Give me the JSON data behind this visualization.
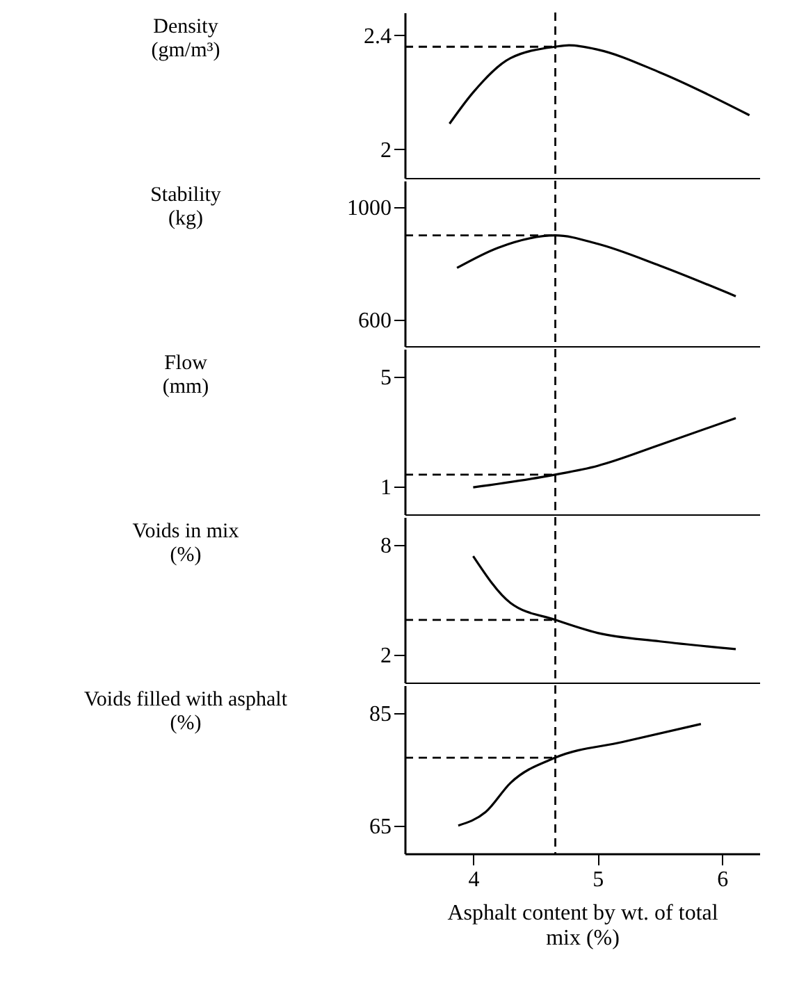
{
  "chart_data": [
    {
      "type": "line",
      "ylabel": "Density\n(gm/m³)",
      "x": [
        3.81,
        4.0,
        4.3,
        4.66,
        4.77,
        5.0,
        5.5,
        6.22
      ],
      "series": [
        {
          "color": "#000000",
          "values": [
            2.09,
            2.2,
            2.32,
            2.36,
            2.365,
            2.35,
            2.27,
            2.12
          ]
        }
      ],
      "xlim": [
        3.45,
        6.3
      ],
      "ylim": [
        1.9,
        2.48
      ],
      "yticks": [
        2,
        2.4
      ],
      "tick_labels": "y",
      "grid": false,
      "marker": "none",
      "line_style": "solid",
      "ref_lines": [
        {
          "axis": "x",
          "value": 4.66,
          "line_style": "dashed"
        },
        {
          "axis": "y",
          "value": 2.36,
          "line_style": "dashed"
        }
      ]
    },
    {
      "type": "line",
      "ylabel": "Stability\n(kg)",
      "x": [
        3.87,
        4.2,
        4.66,
        5.0,
        5.5,
        6.11
      ],
      "series": [
        {
          "color": "#000000",
          "values": [
            784,
            856,
            900,
            870,
            792,
            683
          ]
        }
      ],
      "xlim": [
        3.45,
        6.3
      ],
      "ylim": [
        505,
        1095
      ],
      "yticks": [
        600,
        1000
      ],
      "tick_labels": "y",
      "grid": false,
      "marker": "none",
      "line_style": "solid",
      "ref_lines": [
        {
          "axis": "x",
          "value": 4.66,
          "line_style": "dashed"
        },
        {
          "axis": "y",
          "value": 900,
          "line_style": "dashed"
        }
      ]
    },
    {
      "type": "line",
      "ylabel": "Flow\n(mm)",
      "x": [
        4.0,
        4.66,
        5.0,
        5.5,
        6.11
      ],
      "series": [
        {
          "color": "#000000",
          "values": [
            0.98,
            1.44,
            1.76,
            2.52,
            3.49
          ]
        }
      ],
      "xlim": [
        3.45,
        6.3
      ],
      "ylim": [
        0,
        6
      ],
      "yticks": [
        1,
        5
      ],
      "tick_labels": "y",
      "grid": false,
      "marker": "none",
      "line_style": "solid",
      "ref_lines": [
        {
          "axis": "x",
          "value": 4.66,
          "line_style": "dashed"
        },
        {
          "axis": "y",
          "value": 1.44,
          "line_style": "dashed"
        }
      ]
    },
    {
      "type": "line",
      "ylabel": "Voids in mix\n(%)",
      "x": [
        4.0,
        4.3,
        4.66,
        5.0,
        5.5,
        6.11
      ],
      "series": [
        {
          "color": "#000000",
          "values": [
            7.38,
            4.83,
            3.91,
            3.2,
            2.74,
            2.32
          ]
        }
      ],
      "xlim": [
        3.45,
        6.3
      ],
      "ylim": [
        0.5,
        9.5
      ],
      "yticks": [
        2,
        8
      ],
      "tick_labels": "y",
      "grid": false,
      "marker": "none",
      "line_style": "solid",
      "ref_lines": [
        {
          "axis": "x",
          "value": 4.66,
          "line_style": "dashed"
        },
        {
          "axis": "y",
          "value": 3.91,
          "line_style": "dashed"
        }
      ]
    },
    {
      "type": "line",
      "ylabel": "Voids filled with asphalt\n(%)",
      "xlabel": "Asphalt content by wt. of total\nmix (%)",
      "x": [
        3.88,
        4.1,
        4.3,
        4.66,
        5.2,
        5.83
      ],
      "series": [
        {
          "color": "#000000",
          "values": [
            65,
            67.4,
            72.6,
            77.1,
            79.9,
            83.1
          ]
        }
      ],
      "xlim": [
        3.45,
        6.3
      ],
      "xticks": [
        4,
        5,
        6
      ],
      "ylim": [
        60,
        90
      ],
      "yticks": [
        65,
        85
      ],
      "grid": false,
      "marker": "none",
      "line_style": "solid",
      "ref_lines": [
        {
          "axis": "x",
          "value": 4.66,
          "line_style": "dashed"
        },
        {
          "axis": "y",
          "value": 77.1,
          "line_style": "dashed"
        }
      ]
    }
  ]
}
